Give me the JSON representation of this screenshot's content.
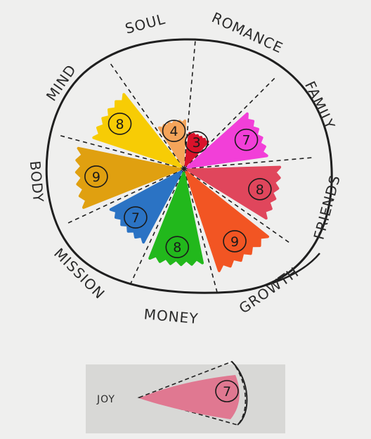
{
  "wheel": {
    "segments": [
      {
        "label": "SOUL",
        "score": 4,
        "color": "#f4a45a"
      },
      {
        "label": "ROMANCE",
        "score": 3,
        "color": "#d9122b"
      },
      {
        "label": "FAMILY",
        "score": 7,
        "color": "#f23fd8"
      },
      {
        "label": "FRIENDS",
        "score": 8,
        "color": "#e0465c"
      },
      {
        "label": "GROWTH",
        "score": 9,
        "color": "#f25523"
      },
      {
        "label": "MONEY",
        "score": 8,
        "color": "#22b81c"
      },
      {
        "label": "MISSION",
        "score": 7,
        "color": "#2b73c4"
      },
      {
        "label": "BODY",
        "score": 9,
        "color": "#e0a010"
      },
      {
        "label": "MIND",
        "score": 8,
        "color": "#f7cc05"
      }
    ]
  },
  "joy": {
    "label": "JOY",
    "score": 7,
    "color": "#e07891"
  }
}
